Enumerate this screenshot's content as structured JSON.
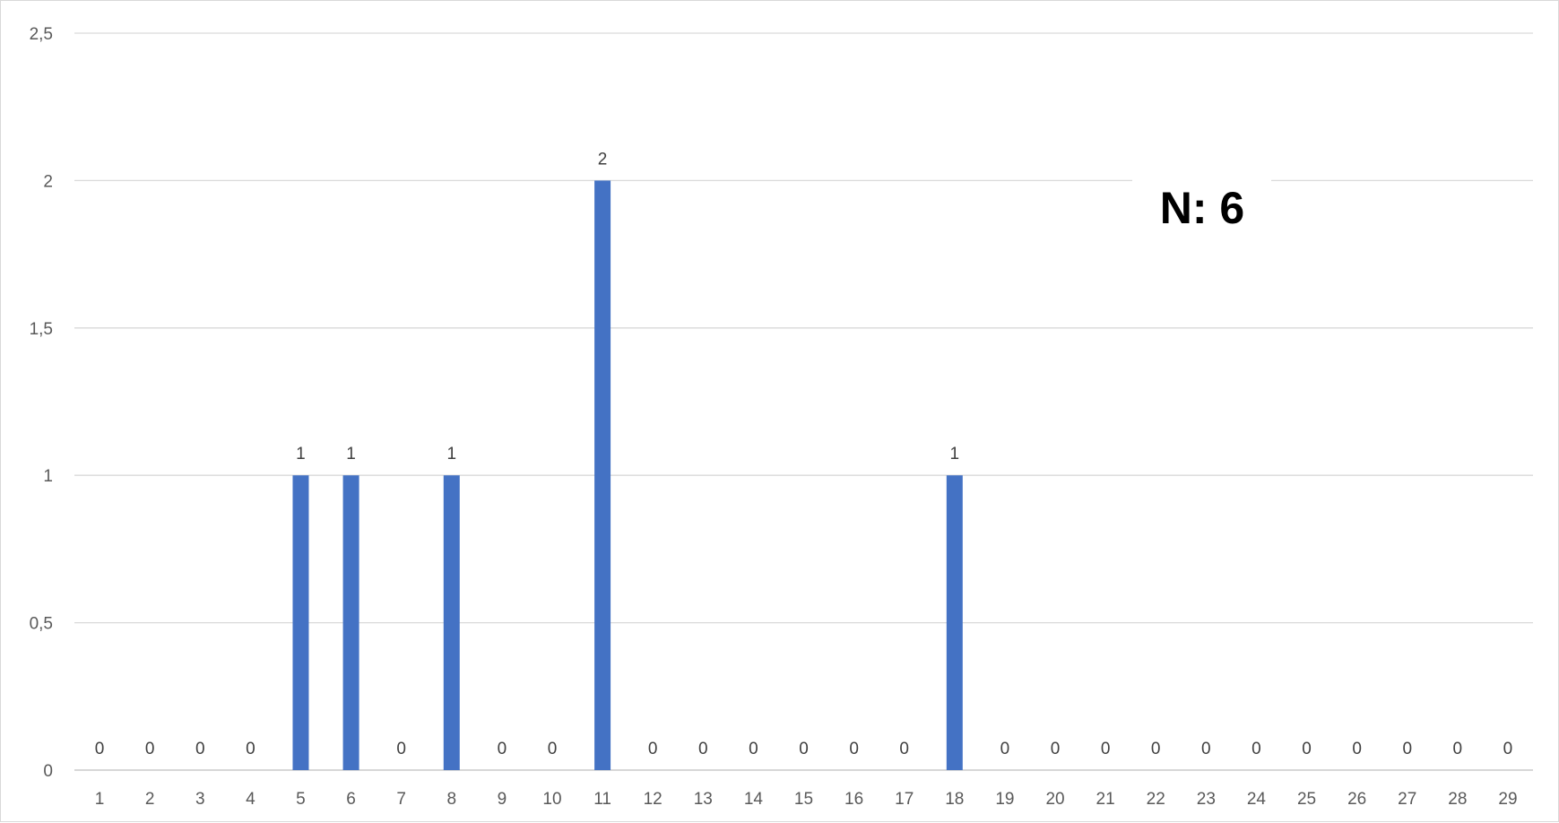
{
  "chart_data": {
    "type": "bar",
    "categories": [
      "1",
      "2",
      "3",
      "4",
      "5",
      "6",
      "7",
      "8",
      "9",
      "10",
      "11",
      "12",
      "13",
      "14",
      "15",
      "16",
      "17",
      "18",
      "19",
      "20",
      "21",
      "22",
      "23",
      "24",
      "25",
      "26",
      "27",
      "28",
      "29"
    ],
    "values": [
      0,
      0,
      0,
      0,
      1,
      1,
      0,
      1,
      0,
      0,
      2,
      0,
      0,
      0,
      0,
      0,
      0,
      1,
      0,
      0,
      0,
      0,
      0,
      0,
      0,
      0,
      0,
      0,
      0
    ],
    "y_ticks": [
      "0",
      "0,5",
      "1",
      "1,5",
      "2",
      "2,5"
    ],
    "y_tick_values": [
      0,
      0.5,
      1,
      1.5,
      2,
      2.5
    ],
    "ylim": [
      0,
      2.5
    ],
    "grid": true,
    "data_labels": true,
    "annotation": "N: 6",
    "colors": {
      "bar": "#4472c4",
      "grid": "#d9d9d9",
      "axis": "#bfbfbf"
    }
  }
}
